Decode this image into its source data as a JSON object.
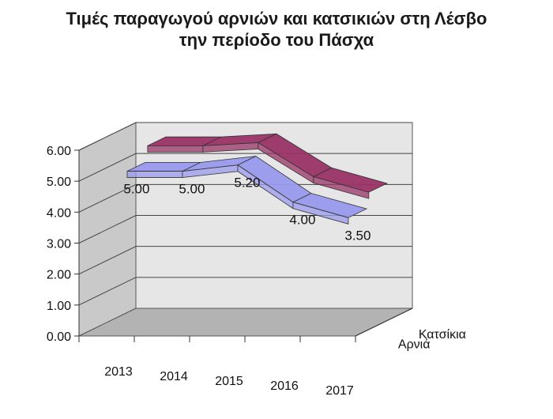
{
  "chart_data": {
    "type": "line",
    "title": "Τιμές παραγωγού αρνιών και κατσικιών στη Λέσβο",
    "subtitle": "την περίοδο του Πάσχα",
    "categories": [
      "2013",
      "2014",
      "2015",
      "2016",
      "2017"
    ],
    "series": [
      {
        "name": "Αρνιά",
        "values": [
          5.0,
          5.0,
          5.2,
          4.0,
          3.5
        ],
        "labels": [
          "5.00",
          "5.00",
          "5.20",
          "4.00",
          "3.50"
        ],
        "color": "#9999ee"
      },
      {
        "name": "Κατσίκια",
        "values": [
          5.5,
          5.5,
          5.6,
          4.5,
          4.0
        ],
        "color": "#993366"
      }
    ],
    "yticks": [
      "0.00",
      "1.00",
      "2.00",
      "3.00",
      "4.00",
      "5.00",
      "6.00"
    ],
    "ylim": [
      0,
      6
    ],
    "grid": true
  }
}
